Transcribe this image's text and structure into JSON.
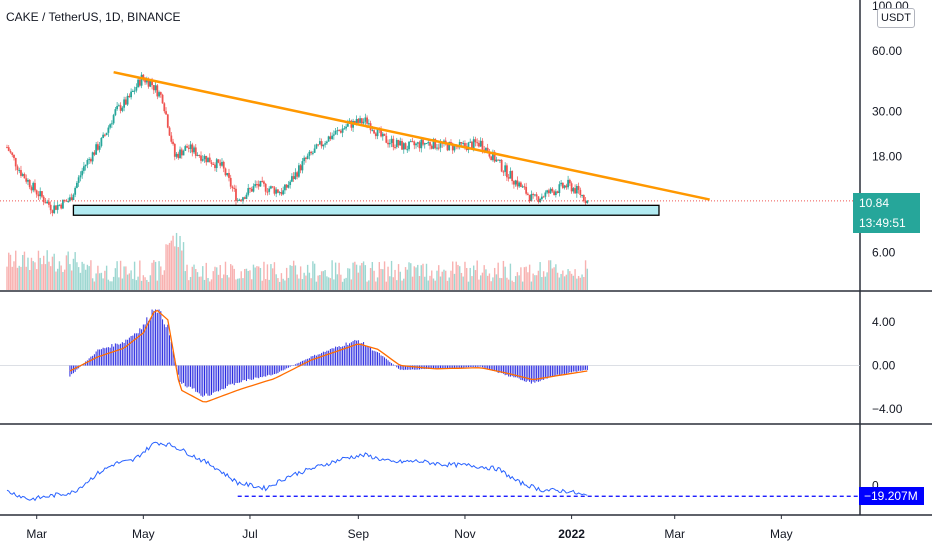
{
  "title": "CAKE / TetherUS, 1D, BINANCE",
  "currency_badge": "USDT",
  "price_tag": {
    "price": "10.84",
    "countdown": "13:49:51",
    "color": "#26a69a"
  },
  "obv_tag": {
    "value": "−19.207M",
    "color": "#0000ff"
  },
  "colors": {
    "up": "#26a69a",
    "down": "#ef5350",
    "trendline": "#ff9800",
    "support_fill": "#b2ebf2",
    "macd_hist": "#2a2ae0",
    "signal": "#ff6d00",
    "obv": "#2962ff"
  },
  "chart_data": [
    {
      "type": "candlestick",
      "y_scale": "log",
      "y_ticks": [
        "100.00",
        "60.00",
        "30.00",
        "18.00",
        "6.00"
      ],
      "x_ticks": [
        "Mar",
        "May",
        "Jul",
        "Sep",
        "Nov",
        "2022",
        "Mar",
        "May"
      ],
      "x_range": [
        "2021-02-08",
        "2022-06-15"
      ],
      "ylim": [
        4.2,
        100
      ],
      "closes": [
        {
          "date": "2021-02-12",
          "close": 20
        },
        {
          "date": "2021-02-20",
          "close": 15
        },
        {
          "date": "2021-03-01",
          "close": 12
        },
        {
          "date": "2021-03-10",
          "close": 10
        },
        {
          "date": "2021-03-20",
          "close": 11
        },
        {
          "date": "2021-03-28",
          "close": 16
        },
        {
          "date": "2021-04-08",
          "close": 22
        },
        {
          "date": "2021-04-15",
          "close": 30
        },
        {
          "date": "2021-04-22",
          "close": 34
        },
        {
          "date": "2021-04-30",
          "close": 44
        },
        {
          "date": "2021-05-05",
          "close": 42
        },
        {
          "date": "2021-05-12",
          "close": 35
        },
        {
          "date": "2021-05-19",
          "close": 18
        },
        {
          "date": "2021-05-26",
          "close": 20
        },
        {
          "date": "2021-06-04",
          "close": 18
        },
        {
          "date": "2021-06-15",
          "close": 16
        },
        {
          "date": "2021-06-24",
          "close": 11
        },
        {
          "date": "2021-07-05",
          "close": 13
        },
        {
          "date": "2021-07-20",
          "close": 12
        },
        {
          "date": "2021-08-01",
          "close": 17
        },
        {
          "date": "2021-08-14",
          "close": 22
        },
        {
          "date": "2021-08-27",
          "close": 26
        },
        {
          "date": "2021-09-06",
          "close": 27
        },
        {
          "date": "2021-09-15",
          "close": 22
        },
        {
          "date": "2021-09-28",
          "close": 20
        },
        {
          "date": "2021-10-10",
          "close": 21
        },
        {
          "date": "2021-10-28",
          "close": 20
        },
        {
          "date": "2021-11-10",
          "close": 21
        },
        {
          "date": "2021-11-22",
          "close": 16
        },
        {
          "date": "2021-12-02",
          "close": 13
        },
        {
          "date": "2021-12-10",
          "close": 11
        },
        {
          "date": "2021-12-20",
          "close": 12
        },
        {
          "date": "2021-12-30",
          "close": 13
        },
        {
          "date": "2022-01-05",
          "close": 12
        },
        {
          "date": "2022-01-10",
          "close": 10.84
        }
      ],
      "trendline": [
        {
          "date": "2021-04-14",
          "price": 47
        },
        {
          "date": "2022-03-21",
          "price": 11
        }
      ],
      "support_zone": {
        "from": "2021-03-22",
        "to": "2022-02-20",
        "price_low": 9.2,
        "price_high": 10.3
      },
      "current_price": 10.84
    },
    {
      "type": "bar",
      "name": "MACD histogram",
      "y_ticks": [
        "4.00",
        "0.00",
        "−4.00"
      ],
      "ylim": [
        -5,
        6.2
      ],
      "x": [
        "2021-03-20",
        "2021-04-05",
        "2021-04-20",
        "2021-05-01",
        "2021-05-08",
        "2021-05-15",
        "2021-05-22",
        "2021-06-05",
        "2021-06-25",
        "2021-07-15",
        "2021-08-05",
        "2021-08-25",
        "2021-09-01",
        "2021-09-12",
        "2021-09-25",
        "2021-10-15",
        "2021-11-10",
        "2021-11-25",
        "2021-12-10",
        "2021-12-25",
        "2022-01-10"
      ],
      "values": [
        -1,
        1.4,
        2.2,
        3.6,
        5.5,
        3.5,
        -1.5,
        -2.8,
        -1.5,
        -0.8,
        0.8,
        2,
        2.3,
        1.2,
        -0.4,
        -0.3,
        -0.1,
        -0.9,
        -1.6,
        -0.8,
        -0.4
      ],
      "signal": [
        -0.5,
        0.8,
        1.6,
        3,
        5.2,
        4.2,
        -2.2,
        -3.4,
        -2.2,
        -1.2,
        0.5,
        1.6,
        2,
        1.5,
        0,
        -0.3,
        -0.2,
        -0.7,
        -1.3,
        -0.9,
        -0.5
      ]
    },
    {
      "type": "line",
      "name": "OBV",
      "y_ticks": [
        "0"
      ],
      "ylim": [
        -35,
        100
      ],
      "x": [
        "2021-02-12",
        "2021-02-25",
        "2021-03-10",
        "2021-03-22",
        "2021-04-05",
        "2021-04-15",
        "2021-04-25",
        "2021-05-08",
        "2021-05-18",
        "2021-05-28",
        "2021-06-10",
        "2021-06-24",
        "2021-07-10",
        "2021-07-24",
        "2021-08-10",
        "2021-08-25",
        "2021-09-05",
        "2021-09-20",
        "2021-10-05",
        "2021-10-20",
        "2021-11-05",
        "2021-11-20",
        "2021-12-01",
        "2021-12-15",
        "2021-12-30",
        "2022-01-10"
      ],
      "values": [
        -10,
        -25,
        -18,
        -12,
        22,
        40,
        45,
        78,
        72,
        56,
        35,
        5,
        -5,
        18,
        35,
        50,
        55,
        42,
        44,
        38,
        36,
        30,
        7,
        -8,
        -10,
        -19.2
      ],
      "baseline": -19.2
    }
  ]
}
